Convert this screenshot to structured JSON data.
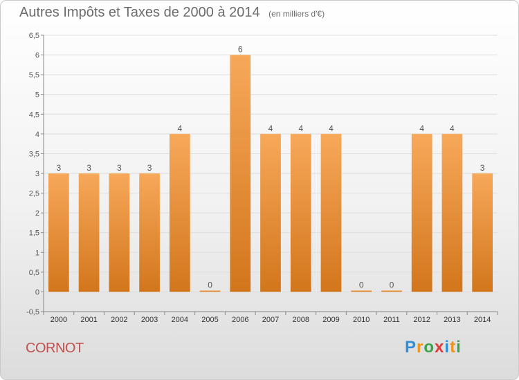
{
  "header": {
    "title": "Autres Impôts et Taxes de 2000 à 2014",
    "subtitle": "(en milliers d'€)"
  },
  "footer": {
    "commune": "CORNOT",
    "logo": {
      "letters": [
        "P",
        "r",
        "o",
        "x",
        "i",
        "t",
        "i"
      ],
      "colors": [
        "#2e8fd6",
        "#f0941f",
        "#3aa34a",
        "#e23b3b",
        "#2e8fd6",
        "#f0941f",
        "#3aa34a"
      ]
    }
  },
  "colors": {
    "bar_light": "#f7a85a",
    "bar_dark": "#d2761c",
    "axis": "#888888",
    "grid": "#dddddd",
    "text": "#555555"
  },
  "chart_data": {
    "type": "bar",
    "title": "Autres Impôts et Taxes de 2000 à 2014",
    "subtitle": "(en milliers d'€)",
    "categories": [
      "2000",
      "2001",
      "2002",
      "2003",
      "2004",
      "2005",
      "2006",
      "2007",
      "2008",
      "2009",
      "2010",
      "2011",
      "2012",
      "2013",
      "2014"
    ],
    "values": [
      3,
      3,
      3,
      3,
      4,
      0,
      6,
      4,
      4,
      4,
      0,
      0,
      4,
      4,
      3
    ],
    "value_labels": [
      "3",
      "3",
      "3",
      "3",
      "4",
      "0",
      "6",
      "4",
      "4",
      "4",
      "0",
      "0",
      "4",
      "4",
      "3"
    ],
    "ylim": [
      -0.5,
      6.5
    ],
    "yticks": [
      -0.5,
      0,
      0.5,
      1,
      1.5,
      2,
      2.5,
      3,
      3.5,
      4,
      4.5,
      5,
      5.5,
      6,
      6.5
    ],
    "ytick_labels": [
      "-0,5",
      "0",
      "0,5",
      "1",
      "1,5",
      "2",
      "2,5",
      "3",
      "3,5",
      "4",
      "4,5",
      "5",
      "5,5",
      "6",
      "6,5"
    ],
    "grid": true,
    "legend": false
  }
}
